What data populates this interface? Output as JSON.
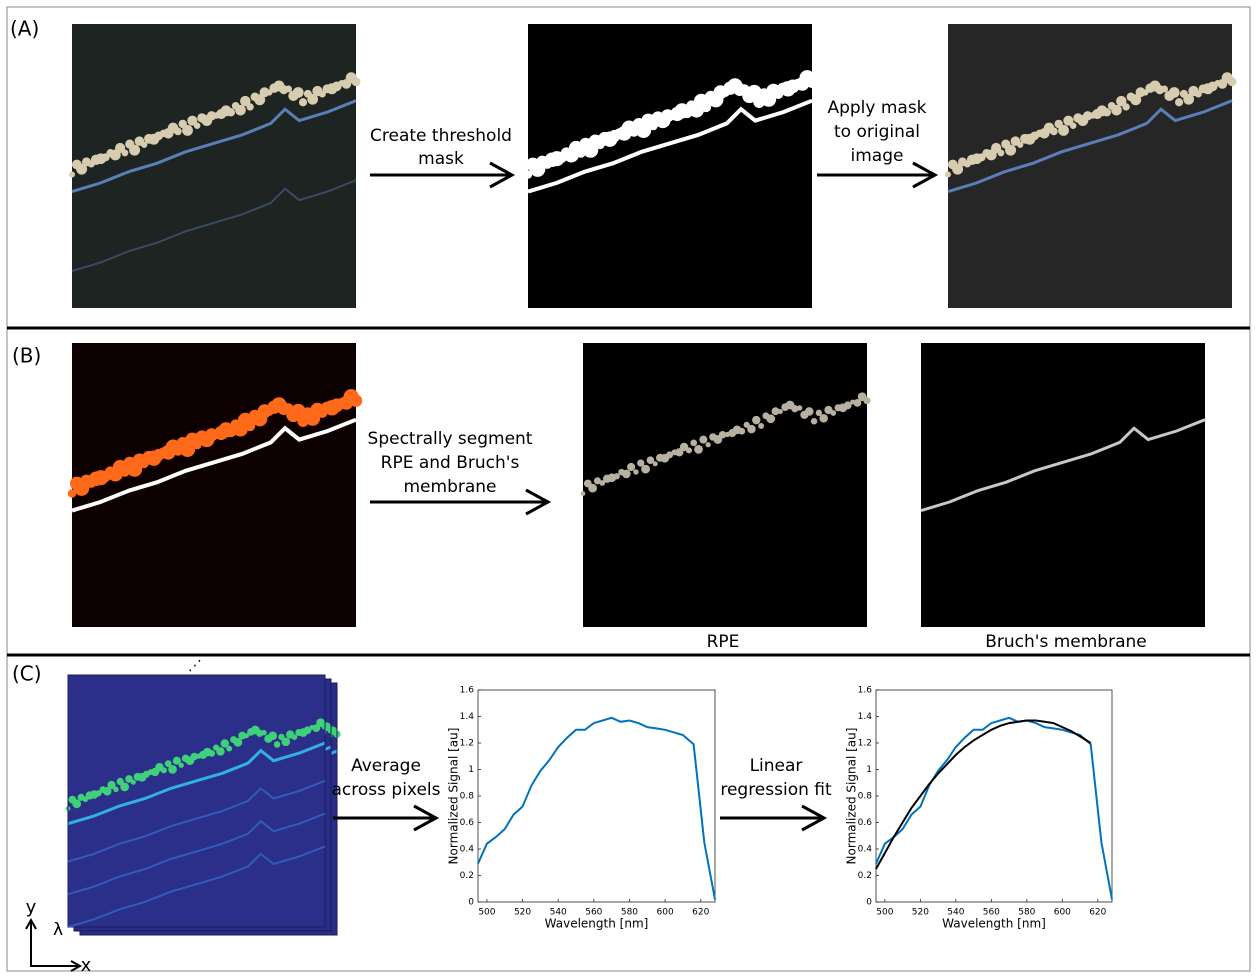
{
  "panels": {
    "a": {
      "label": "(A)",
      "step_1": [
        "Create threshold",
        "mask"
      ],
      "step_2": [
        "Apply mask",
        "to original",
        "image"
      ]
    },
    "b": {
      "label": "(B)",
      "step_1": [
        "Spectrally segment",
        "RPE and Bruch's",
        "membrane"
      ],
      "caption_1": "RPE",
      "caption_2": "Bruch's membrane"
    },
    "c": {
      "label": "(C)",
      "stack_ellipsis": "⋰",
      "step_1": [
        "Average",
        "across pixels"
      ],
      "step_2": [
        "Linear",
        "regression fit"
      ],
      "axis_y": "y",
      "axis_lambda": "λ",
      "axis_x": "x"
    }
  },
  "chart_data": [
    {
      "type": "line",
      "xlabel": "Wavelength [nm]",
      "ylabel": "Normalized Signal [au]",
      "x": [
        495,
        500,
        505,
        510,
        515,
        520,
        525,
        530,
        535,
        540,
        545,
        550,
        555,
        560,
        565,
        570,
        575,
        580,
        585,
        590,
        595,
        600,
        605,
        610,
        616,
        622,
        628
      ],
      "series": [
        {
          "color": "#0072bd",
          "values": [
            0.29,
            0.44,
            0.49,
            0.55,
            0.66,
            0.72,
            0.88,
            0.99,
            1.07,
            1.17,
            1.24,
            1.3,
            1.3,
            1.35,
            1.37,
            1.39,
            1.36,
            1.37,
            1.35,
            1.32,
            1.31,
            1.3,
            1.28,
            1.26,
            1.19,
            0.45,
            0.02
          ]
        }
      ],
      "xlim": [
        495,
        628
      ],
      "xticks": [
        500,
        520,
        540,
        560,
        580,
        600,
        620
      ],
      "ylim": [
        0,
        1.6
      ],
      "yticks": [
        0,
        0.2,
        0.4,
        0.6,
        0.8,
        1,
        1.2,
        1.4,
        1.6
      ]
    },
    {
      "type": "line",
      "xlabel": "Wavelength [nm]",
      "ylabel": "Normalized Signal [au]",
      "x": [
        495,
        500,
        505,
        510,
        515,
        520,
        525,
        530,
        535,
        540,
        545,
        550,
        555,
        560,
        565,
        570,
        575,
        580,
        585,
        590,
        595,
        600,
        605,
        610,
        616,
        622,
        628
      ],
      "series": [
        {
          "color": "#0072bd",
          "values": [
            0.29,
            0.44,
            0.49,
            0.55,
            0.66,
            0.72,
            0.88,
            0.99,
            1.07,
            1.17,
            1.24,
            1.3,
            1.3,
            1.35,
            1.37,
            1.39,
            1.36,
            1.37,
            1.35,
            1.32,
            1.31,
            1.3,
            1.28,
            1.26,
            1.19,
            0.45,
            0.02
          ]
        },
        {
          "color": "#000000",
          "values": [
            0.25,
            0.37,
            0.49,
            0.6,
            0.71,
            0.8,
            0.89,
            0.97,
            1.04,
            1.11,
            1.17,
            1.22,
            1.26,
            1.3,
            1.33,
            1.35,
            1.36,
            1.37,
            1.37,
            1.36,
            1.35,
            1.32,
            1.29,
            1.25,
            1.2,
            null,
            null
          ]
        }
      ],
      "xlim": [
        495,
        628
      ],
      "xticks": [
        500,
        520,
        540,
        560,
        580,
        600,
        620
      ],
      "ylim": [
        0,
        1.6
      ],
      "yticks": [
        0,
        0.2,
        0.4,
        0.6,
        0.8,
        1,
        1.2,
        1.4,
        1.6
      ]
    }
  ]
}
